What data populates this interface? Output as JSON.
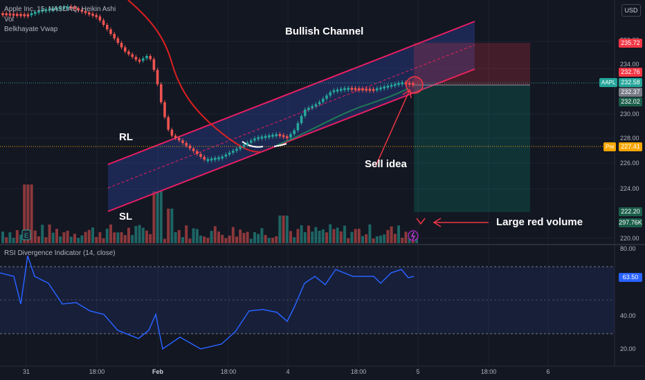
{
  "legend": {
    "symbol": "Apple Inc, 15, NASDAQ, Heikin Ashi",
    "vol": "Vol",
    "vwap": "Belkhayate Vwap",
    "rsi": "RSI Divergence Indicator (14, close)"
  },
  "currency": "USD",
  "price_axis": [
    "236.00",
    "234.00",
    "230.00",
    "228.00",
    "226.00",
    "224.00",
    "220.00"
  ],
  "rsi_axis": [
    "80.00",
    "40.00",
    "20.00"
  ],
  "price_badges": {
    "target": "235.72",
    "high": "232.76",
    "last": "232.58",
    "mid": "232.37",
    "stop": "232.02",
    "pre": "227.41",
    "low": "222.20",
    "volume": "297.76K",
    "rsi": "63.50"
  },
  "tags": {
    "symbol": "AAPL",
    "pre": "Pre"
  },
  "time_axis": [
    "31",
    "18:00",
    "Feb",
    "18:00",
    "4",
    "18:00",
    "5",
    "18:00",
    "6"
  ],
  "annotations": {
    "channel": "Bullish Channel",
    "rl": "RL",
    "sl": "SL",
    "sell": "Sell idea",
    "volume": "Large red volume"
  },
  "colors": {
    "background": "#131722",
    "up": "#26a69a",
    "down": "#ef5350",
    "channel": "#e91e63",
    "rsi_line": "#2962ff",
    "vwap": "#e02020"
  },
  "rsi_value": 63.5
}
